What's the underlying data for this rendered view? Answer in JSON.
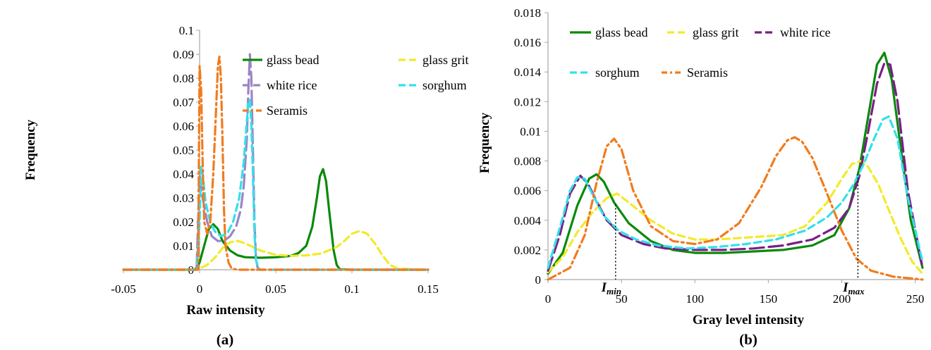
{
  "chart_data": [
    {
      "type": "line",
      "panel_label": "(a)",
      "xlabel": "Raw intensity",
      "ylabel": "Frequency",
      "xlim": [
        -0.05,
        0.15
      ],
      "ylim": [
        0,
        0.1
      ],
      "x_ticks": [
        -0.05,
        0,
        0.05,
        0.1,
        0.15
      ],
      "x_tick_labels": [
        "-0.05",
        "0",
        "0.05",
        "0.1",
        "0.15"
      ],
      "y_ticks": [
        0,
        0.01,
        0.02,
        0.03,
        0.04,
        0.05,
        0.06,
        0.07,
        0.08,
        0.09,
        0.1
      ],
      "y_tick_labels": [
        "0",
        "0.01",
        "0.02",
        "0.03",
        "0.04",
        "0.05",
        "0.06",
        "0.07",
        "0.08",
        "0.09",
        "0.1"
      ],
      "legend_position": "top-right",
      "series": [
        {
          "name": "glass bead",
          "color": "#0a8a0a",
          "dash": "solid",
          "x": [
            -0.05,
            -0.003,
            0.0,
            0.003,
            0.006,
            0.009,
            0.012,
            0.015,
            0.02,
            0.025,
            0.03,
            0.04,
            0.05,
            0.06,
            0.065,
            0.07,
            0.074,
            0.077,
            0.079,
            0.081,
            0.083,
            0.085,
            0.088,
            0.09,
            0.092,
            0.1,
            0.15
          ],
          "y": [
            0,
            0,
            0.003,
            0.01,
            0.017,
            0.019,
            0.017,
            0.012,
            0.008,
            0.006,
            0.0052,
            0.005,
            0.0052,
            0.0058,
            0.007,
            0.01,
            0.018,
            0.03,
            0.039,
            0.042,
            0.037,
            0.025,
            0.008,
            0.002,
            0.0002,
            0,
            0
          ]
        },
        {
          "name": "glass grit",
          "color": "#f2ea2a",
          "dash": "dashed",
          "x": [
            -0.05,
            -0.003,
            0.0,
            0.005,
            0.01,
            0.015,
            0.02,
            0.025,
            0.03,
            0.04,
            0.05,
            0.06,
            0.07,
            0.08,
            0.09,
            0.095,
            0.1,
            0.105,
            0.11,
            0.115,
            0.12,
            0.125,
            0.13,
            0.15
          ],
          "y": [
            0,
            0,
            0.0005,
            0.002,
            0.005,
            0.009,
            0.0115,
            0.012,
            0.011,
            0.008,
            0.0062,
            0.0058,
            0.006,
            0.0068,
            0.0095,
            0.012,
            0.015,
            0.0162,
            0.015,
            0.011,
            0.006,
            0.002,
            0.0005,
            0
          ]
        },
        {
          "name": "white rice",
          "color": "#9a85c4",
          "dash": "long-dash",
          "x": [
            -0.05,
            -0.002,
            0.0,
            0.002,
            0.005,
            0.008,
            0.012,
            0.016,
            0.02,
            0.024,
            0.027,
            0.029,
            0.031,
            0.032,
            0.033,
            0.034,
            0.035,
            0.036,
            0.037,
            0.038,
            0.04,
            0.05,
            0.15
          ],
          "y": [
            0,
            0,
            0.04,
            0.03,
            0.02,
            0.014,
            0.012,
            0.012,
            0.014,
            0.018,
            0.025,
            0.035,
            0.055,
            0.075,
            0.09,
            0.08,
            0.05,
            0.02,
            0.005,
            0.001,
            0,
            0,
            0
          ]
        },
        {
          "name": "sorghum",
          "color": "#33e0ea",
          "dash": "dashed",
          "x": [
            -0.05,
            -0.002,
            0.0,
            0.001,
            0.002,
            0.004,
            0.007,
            0.01,
            0.014,
            0.018,
            0.022,
            0.026,
            0.029,
            0.031,
            0.032,
            0.033,
            0.034,
            0.035,
            0.036,
            0.037,
            0.039,
            0.05,
            0.15
          ],
          "y": [
            0,
            0,
            0.02,
            0.043,
            0.04,
            0.028,
            0.02,
            0.016,
            0.014,
            0.015,
            0.02,
            0.03,
            0.045,
            0.062,
            0.07,
            0.071,
            0.06,
            0.04,
            0.015,
            0.004,
            0,
            0,
            0
          ]
        },
        {
          "name": "Seramis",
          "color": "#f07c1e",
          "dash": "dash-dot",
          "x": [
            -0.05,
            -0.001,
            0.0,
            0.001,
            0.002,
            0.003,
            0.005,
            0.007,
            0.009,
            0.011,
            0.012,
            0.013,
            0.014,
            0.015,
            0.016,
            0.017,
            0.019,
            0.021,
            0.025,
            0.15
          ],
          "y": [
            0,
            0,
            0.085,
            0.075,
            0.045,
            0.02,
            0.015,
            0.02,
            0.04,
            0.07,
            0.085,
            0.089,
            0.08,
            0.055,
            0.025,
            0.01,
            0.003,
            0.0005,
            0,
            0
          ]
        }
      ]
    },
    {
      "type": "line",
      "panel_label": "(b)",
      "xlabel": "Gray level intensity",
      "ylabel": "Frequency",
      "xlim": [
        0,
        255
      ],
      "ylim": [
        0,
        0.018
      ],
      "x_ticks": [
        0,
        50,
        100,
        150,
        200,
        250
      ],
      "x_tick_labels": [
        "0",
        "50",
        "100",
        "150",
        "200",
        "250"
      ],
      "y_ticks": [
        0,
        0.002,
        0.004,
        0.006,
        0.008,
        0.01,
        0.012,
        0.014,
        0.016,
        0.018
      ],
      "y_tick_labels": [
        "0",
        "0.002",
        "0.004",
        "0.006",
        "0.008",
        "0.01",
        "0.012",
        "0.014",
        "0.016",
        "0.018"
      ],
      "legend_position": "top-left",
      "annotations": [
        {
          "main": "I",
          "sub": "min",
          "x": 46
        },
        {
          "main": "I",
          "sub": "max",
          "x": 211
        }
      ],
      "series": [
        {
          "name": "glass bead",
          "color": "#0a8a0a",
          "dash": "solid",
          "x": [
            0,
            10,
            20,
            28,
            33,
            38,
            45,
            55,
            70,
            85,
            100,
            120,
            140,
            160,
            180,
            195,
            205,
            212,
            218,
            224,
            229,
            234,
            240,
            247,
            255
          ],
          "y": [
            0.0004,
            0.0018,
            0.005,
            0.0068,
            0.0071,
            0.0066,
            0.0052,
            0.0038,
            0.0026,
            0.002,
            0.0018,
            0.0018,
            0.0019,
            0.002,
            0.0023,
            0.003,
            0.0048,
            0.0075,
            0.011,
            0.0145,
            0.0153,
            0.0135,
            0.009,
            0.004,
            0.0008
          ]
        },
        {
          "name": "glass grit",
          "color": "#f2ea2a",
          "dash": "dashed",
          "x": [
            0,
            10,
            20,
            30,
            40,
            47,
            55,
            70,
            85,
            100,
            115,
            130,
            145,
            160,
            175,
            190,
            200,
            207,
            213,
            218,
            225,
            232,
            240,
            248,
            255
          ],
          "y": [
            0.0005,
            0.0015,
            0.0032,
            0.0045,
            0.0055,
            0.0058,
            0.0052,
            0.004,
            0.0031,
            0.0027,
            0.0027,
            0.0028,
            0.0029,
            0.003,
            0.0036,
            0.0052,
            0.0068,
            0.0078,
            0.008,
            0.0076,
            0.0064,
            0.0047,
            0.0028,
            0.0012,
            0.0004
          ]
        },
        {
          "name": "white rice",
          "color": "#7a1f86",
          "dash": "long-dash",
          "x": [
            0,
            8,
            15,
            22,
            27,
            33,
            40,
            50,
            65,
            80,
            100,
            120,
            140,
            160,
            180,
            195,
            205,
            212,
            218,
            224,
            229,
            233,
            238,
            245,
            255
          ],
          "y": [
            0.0006,
            0.003,
            0.0058,
            0.007,
            0.0065,
            0.0053,
            0.004,
            0.003,
            0.0024,
            0.0021,
            0.002,
            0.002,
            0.0021,
            0.0023,
            0.0027,
            0.0035,
            0.0048,
            0.007,
            0.01,
            0.0132,
            0.0146,
            0.0145,
            0.012,
            0.006,
            0.0008
          ]
        },
        {
          "name": "sorghum",
          "color": "#33e0ea",
          "dash": "dashed",
          "x": [
            0,
            8,
            15,
            20,
            25,
            30,
            38,
            48,
            60,
            75,
            95,
            115,
            135,
            155,
            175,
            190,
            200,
            208,
            215,
            222,
            228,
            232,
            238,
            245,
            255
          ],
          "y": [
            0.0008,
            0.0035,
            0.006,
            0.0069,
            0.0068,
            0.0058,
            0.0043,
            0.0033,
            0.0027,
            0.0023,
            0.0021,
            0.0022,
            0.0024,
            0.0027,
            0.0033,
            0.0042,
            0.0052,
            0.0064,
            0.0078,
            0.0095,
            0.0108,
            0.011,
            0.0095,
            0.0055,
            0.0012
          ]
        },
        {
          "name": "Seramis",
          "color": "#f07c1e",
          "dash": "dash-dot",
          "x": [
            0,
            15,
            25,
            33,
            40,
            45,
            50,
            58,
            70,
            85,
            100,
            115,
            130,
            145,
            155,
            163,
            168,
            173,
            180,
            190,
            200,
            210,
            220,
            235,
            255
          ],
          "y": [
            0,
            0.0008,
            0.003,
            0.0065,
            0.009,
            0.0095,
            0.0088,
            0.006,
            0.0036,
            0.0026,
            0.0024,
            0.0027,
            0.0038,
            0.0062,
            0.0083,
            0.0094,
            0.0096,
            0.0093,
            0.0082,
            0.0058,
            0.0033,
            0.0014,
            0.0006,
            0.0002,
            0
          ]
        }
      ]
    }
  ]
}
